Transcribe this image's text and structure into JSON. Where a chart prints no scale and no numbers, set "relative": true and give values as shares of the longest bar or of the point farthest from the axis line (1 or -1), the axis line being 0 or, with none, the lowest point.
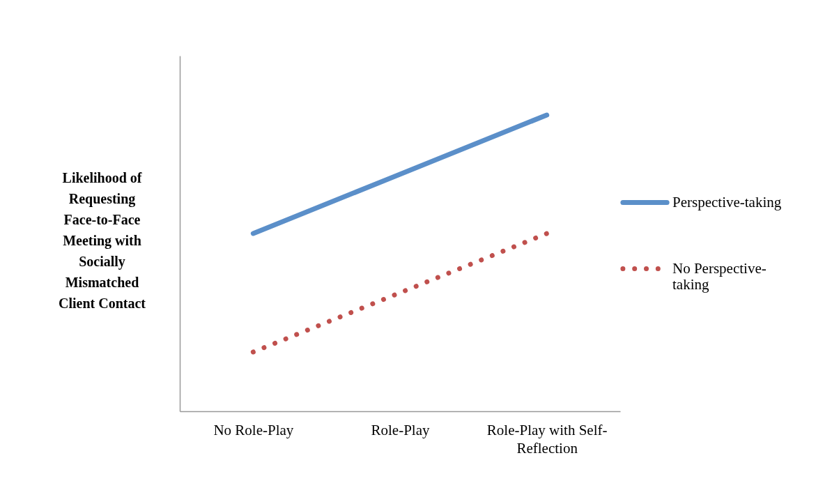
{
  "chart_data": {
    "type": "line",
    "relative": true,
    "ylabel": "Likelihood of Requesting Face-to-Face Meeting with Socially Mismatched Client Contact",
    "categories": [
      "No Role-Play",
      "Role-Play",
      "Role-Play with Self-Reflection"
    ],
    "series": [
      {
        "name": "Perspective-taking",
        "color": "#5b8fc9",
        "line_style": "solid",
        "values": [
          0.6,
          0.8,
          1.0
        ]
      },
      {
        "name": "No Perspective-taking",
        "color": "#c0504d",
        "line_style": "dotted",
        "values": [
          0.2,
          0.4,
          0.6
        ]
      }
    ],
    "legend": "right",
    "grid": false,
    "marker": "none"
  }
}
